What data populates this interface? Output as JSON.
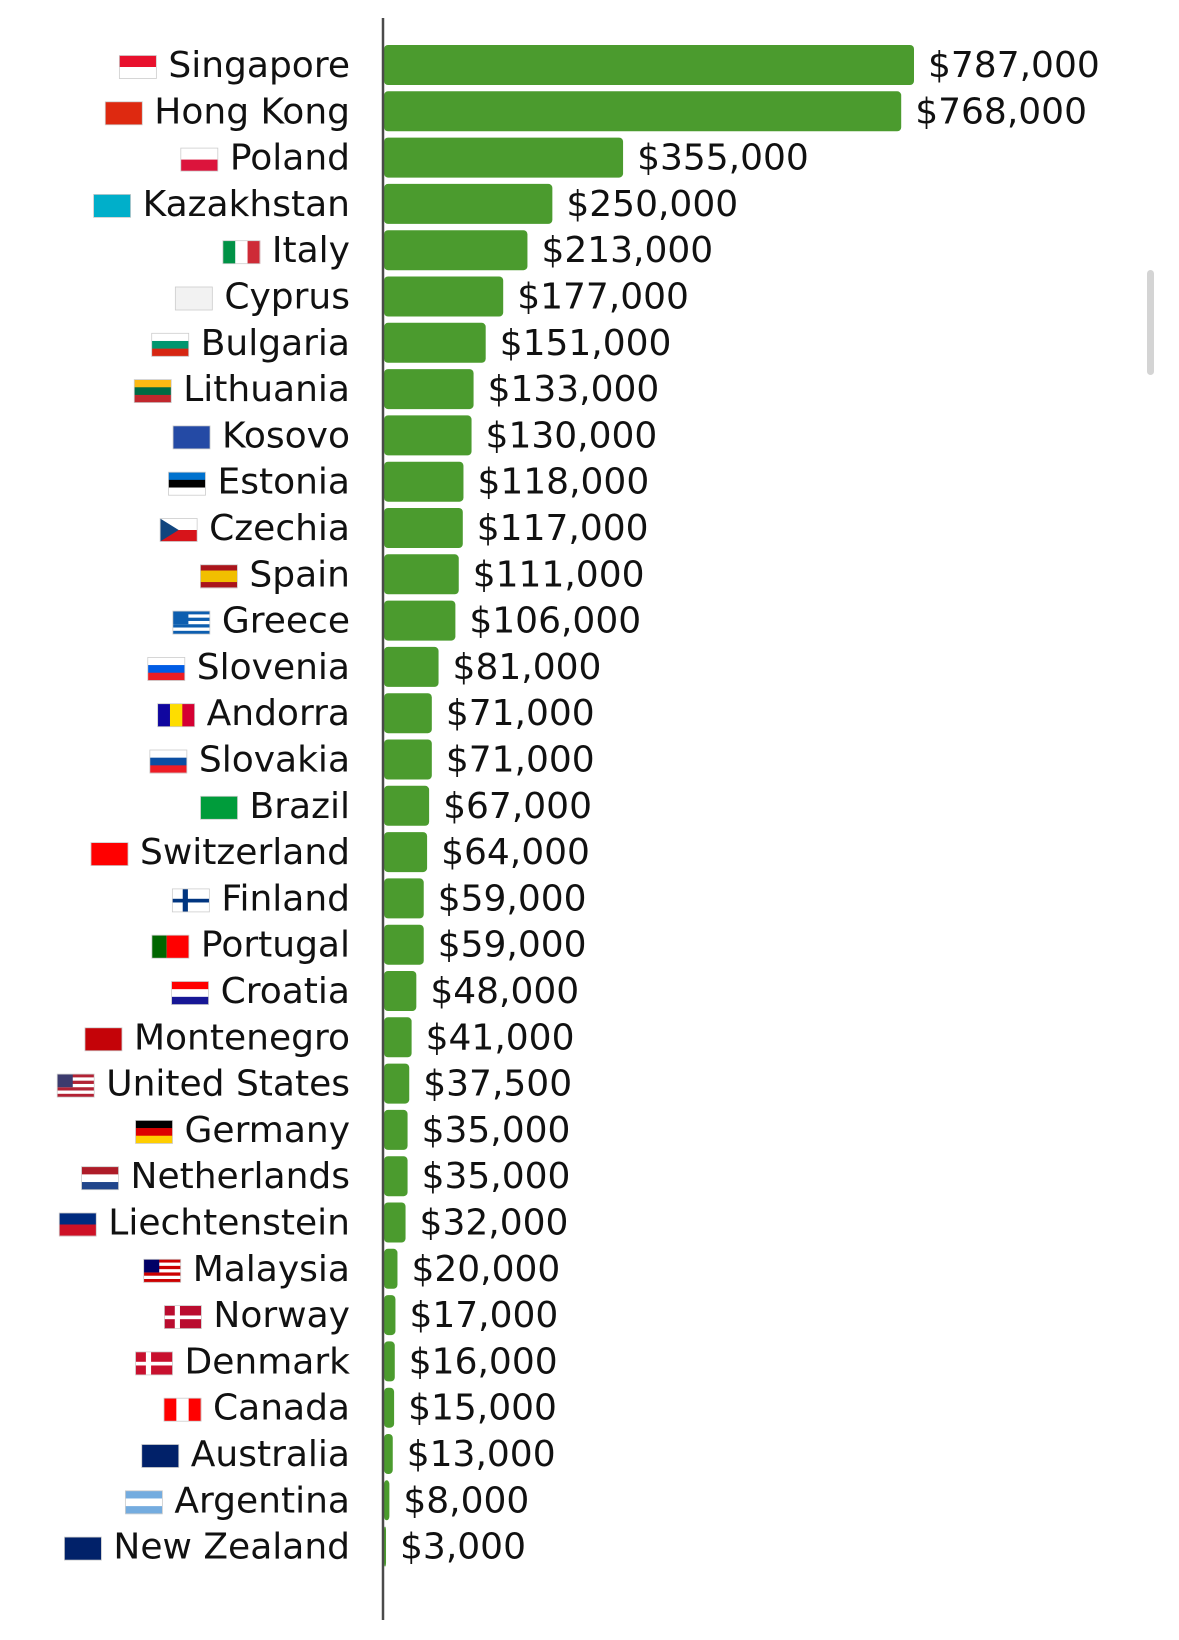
{
  "chart_data": {
    "type": "bar",
    "orientation": "horizontal",
    "bar_color": "#4b9b2e",
    "axis_color": "#4a4a4a",
    "grid": false,
    "legend": "none",
    "xlim": [
      0,
      787000
    ],
    "categories": [
      "Singapore",
      "Hong Kong",
      "Poland",
      "Kazakhstan",
      "Italy",
      "Cyprus",
      "Bulgaria",
      "Lithuania",
      "Kosovo",
      "Estonia",
      "Czechia",
      "Spain",
      "Greece",
      "Slovenia",
      "Andorra",
      "Slovakia",
      "Brazil",
      "Switzerland",
      "Finland",
      "Portugal",
      "Croatia",
      "Montenegro",
      "United States",
      "Germany",
      "Netherlands",
      "Liechtenstein",
      "Malaysia",
      "Norway",
      "Denmark",
      "Canada",
      "Australia",
      "Argentina",
      "New Zealand"
    ],
    "values": [
      787000,
      768000,
      355000,
      250000,
      213000,
      177000,
      151000,
      133000,
      130000,
      118000,
      117000,
      111000,
      106000,
      81000,
      71000,
      71000,
      67000,
      64000,
      59000,
      59000,
      48000,
      41000,
      37500,
      35000,
      35000,
      32000,
      20000,
      17000,
      16000,
      15000,
      13000,
      8000,
      3000
    ],
    "value_labels": [
      "$787,000",
      "$768,000",
      "$355,000",
      "$250,000",
      "$213,000",
      "$177,000",
      "$151,000",
      "$133,000",
      "$130,000",
      "$118,000",
      "$117,000",
      "$111,000",
      "$106,000",
      "$81,000",
      "$71,000",
      "$71,000",
      "$67,000",
      "$64,000",
      "$59,000",
      "$59,000",
      "$48,000",
      "$41,000",
      "$37,500",
      "$35,000",
      "$35,000",
      "$32,000",
      "$20,000",
      "$17,000",
      "$16,000",
      "$15,000",
      "$13,000",
      "$8,000",
      "$3,000"
    ],
    "flags": [
      {
        "type": "h",
        "colors": [
          "#e8112d",
          "#ffffff"
        ]
      },
      {
        "type": "solid",
        "colors": [
          "#de2910"
        ]
      },
      {
        "type": "h",
        "colors": [
          "#ffffff",
          "#dc143c"
        ]
      },
      {
        "type": "solid",
        "colors": [
          "#00afca"
        ]
      },
      {
        "type": "v",
        "colors": [
          "#009246",
          "#ffffff",
          "#ce2b37"
        ]
      },
      {
        "type": "solid",
        "colors": [
          "#f2f2f2"
        ]
      },
      {
        "type": "h",
        "colors": [
          "#ffffff",
          "#00966e",
          "#d62612"
        ]
      },
      {
        "type": "h",
        "colors": [
          "#fdb913",
          "#006a44",
          "#c1272d"
        ]
      },
      {
        "type": "solid",
        "colors": [
          "#244aa5"
        ]
      },
      {
        "type": "h",
        "colors": [
          "#0072ce",
          "#000000",
          "#ffffff"
        ]
      },
      {
        "type": "cz",
        "colors": [
          "#ffffff",
          "#d7141a",
          "#11457e"
        ]
      },
      {
        "type": "h3",
        "colors": [
          "#aa151b",
          "#f1bf00",
          "#aa151b"
        ]
      },
      {
        "type": "stripes",
        "colors": [
          "#0d5eaf",
          "#ffffff"
        ]
      },
      {
        "type": "h",
        "colors": [
          "#ffffff",
          "#005ce5",
          "#ed1c24"
        ]
      },
      {
        "type": "v",
        "colors": [
          "#10069f",
          "#fedd00",
          "#d50032"
        ]
      },
      {
        "type": "h",
        "colors": [
          "#ffffff",
          "#0b4ea2",
          "#ee1c25"
        ]
      },
      {
        "type": "solid",
        "colors": [
          "#009c3b"
        ]
      },
      {
        "type": "solid",
        "colors": [
          "#ff0000"
        ]
      },
      {
        "type": "nordic",
        "colors": [
          "#ffffff",
          "#003580"
        ]
      },
      {
        "type": "v2",
        "colors": [
          "#006600",
          "#ff0000"
        ]
      },
      {
        "type": "h",
        "colors": [
          "#ff0000",
          "#ffffff",
          "#171796"
        ]
      },
      {
        "type": "solid",
        "colors": [
          "#c40308"
        ]
      },
      {
        "type": "stripes",
        "colors": [
          "#b22234",
          "#ffffff"
        ]
      },
      {
        "type": "h",
        "colors": [
          "#000000",
          "#dd0000",
          "#ffce00"
        ]
      },
      {
        "type": "h",
        "colors": [
          "#ae1c28",
          "#ffffff",
          "#21468b"
        ]
      },
      {
        "type": "h",
        "colors": [
          "#002b7f",
          "#ce1126"
        ]
      },
      {
        "type": "stripes",
        "colors": [
          "#cc0001",
          "#ffffff"
        ]
      },
      {
        "type": "nordic",
        "colors": [
          "#ba0c2f",
          "#ffffff"
        ]
      },
      {
        "type": "nordic",
        "colors": [
          "#c8102e",
          "#ffffff"
        ]
      },
      {
        "type": "v",
        "colors": [
          "#ff0000",
          "#ffffff",
          "#ff0000"
        ]
      },
      {
        "type": "solid",
        "colors": [
          "#012169"
        ]
      },
      {
        "type": "h",
        "colors": [
          "#74acdf",
          "#ffffff",
          "#74acdf"
        ]
      },
      {
        "type": "solid",
        "colors": [
          "#012169"
        ]
      }
    ]
  }
}
